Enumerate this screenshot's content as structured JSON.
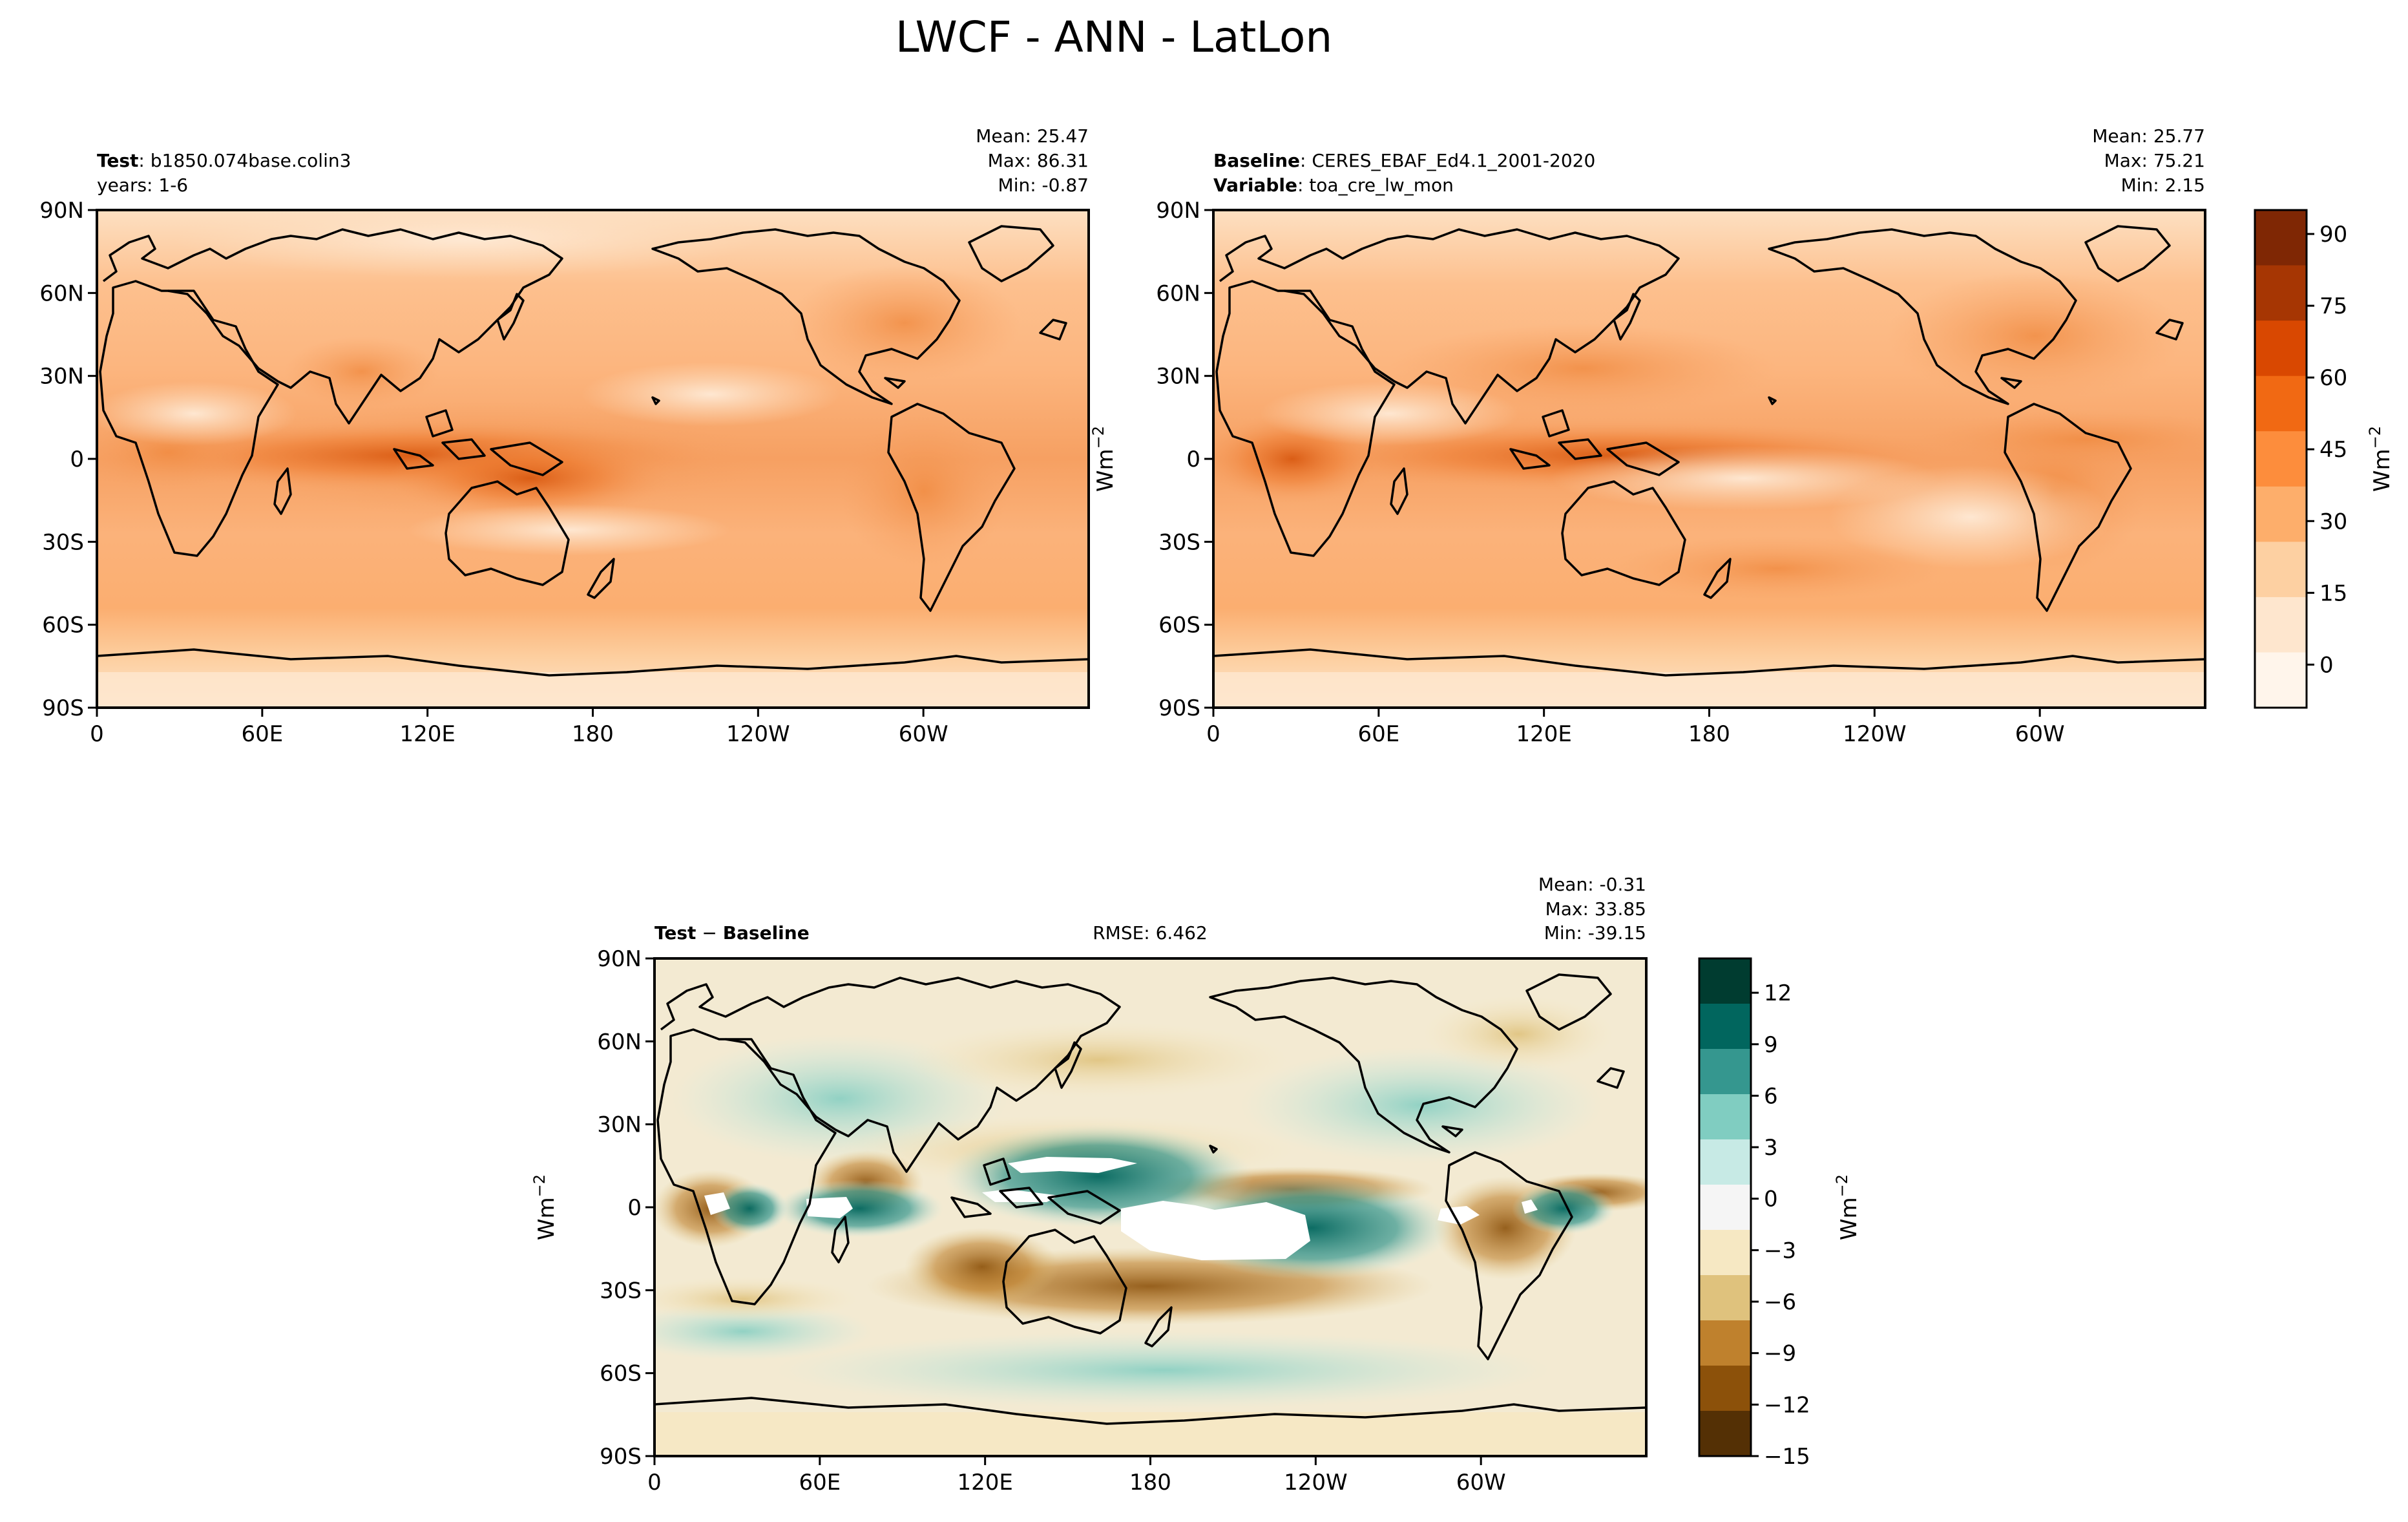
{
  "title": "LWCF - ANN - LatLon",
  "lat_ticks": [
    "90N",
    "60N",
    "30N",
    "0",
    "30S",
    "60S",
    "90S"
  ],
  "lon_ticks": [
    "0",
    "60E",
    "120E",
    "180",
    "120W",
    "60W"
  ],
  "units_label": "Wm",
  "units_exp": "−2",
  "panels": {
    "test": {
      "label_bold": "Test",
      "label_text": ": b1850.074base.colin3",
      "line2": "years: 1-6",
      "mean": "Mean: 25.47",
      "max": "Max: 86.31",
      "min": "Min: -0.87"
    },
    "baseline": {
      "label_bold": "Baseline",
      "label_text": ": CERES_EBAF_Ed4.1_2001-2020",
      "var_bold": "Variable",
      "var_text": ": toa_cre_lw_mon",
      "mean": "Mean: 25.77",
      "max": "Max: 75.21",
      "min": "Min:  2.15"
    },
    "diff": {
      "label_bold_1": "Test",
      "label_sep": " − ",
      "label_bold_2": "Baseline",
      "rmse": "RMSE: 6.462",
      "mean": "Mean: -0.31",
      "max": "Max: 33.85",
      "min": "Min: -39.15"
    }
  },
  "colorbar_top": {
    "ticks": [
      "90",
      "75",
      "60",
      "45",
      "30",
      "15",
      "0"
    ],
    "range": [
      -9,
      95
    ],
    "colors": [
      "#fff5eb",
      "#fee6ce",
      "#fdd0a2",
      "#fdae6b",
      "#fd8d3c",
      "#f16913",
      "#d94801",
      "#a63603",
      "#7f2704"
    ]
  },
  "colorbar_diff": {
    "ticks": [
      "12",
      "9",
      "6",
      "3",
      "0",
      "−3",
      "−6",
      "−9",
      "−12",
      "−15"
    ],
    "range": [
      -15,
      14
    ],
    "colors": [
      "#543005",
      "#8c510a",
      "#bf812d",
      "#dfc27d",
      "#f6e8c3",
      "#f5f5f5",
      "#c7eae5",
      "#80cdc1",
      "#35978f",
      "#01665e",
      "#003c30"
    ]
  }
}
